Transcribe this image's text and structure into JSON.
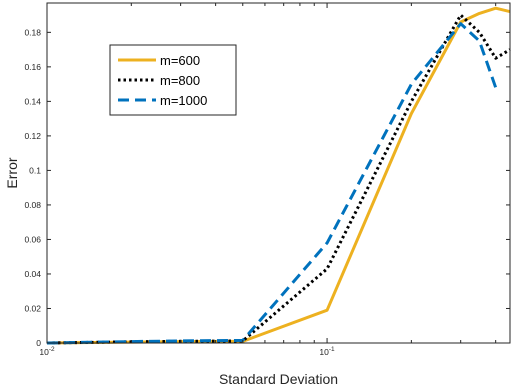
{
  "chart_data": {
    "type": "line",
    "xscale": "log",
    "xlabel": "Standard Deviation",
    "ylabel": "Error",
    "xlim": [
      0.01,
      0.45
    ],
    "ylim": [
      0,
      0.197
    ],
    "x_ticks": [
      {
        "value": 0.01,
        "base": "10",
        "exp": "-2"
      },
      {
        "value": 0.1,
        "base": "10",
        "exp": "-1"
      }
    ],
    "y_ticks": [
      0,
      0.02,
      0.04,
      0.06,
      0.08,
      0.1,
      0.12,
      0.14,
      0.16,
      0.18
    ],
    "y_tick_labels": [
      "0",
      "0.02",
      "0.04",
      "0.06",
      "0.08",
      "0.1",
      "0.12",
      "0.14",
      "0.16",
      "0.18"
    ],
    "grid": false,
    "legend_position": "upper-left",
    "series": [
      {
        "name": "m=600",
        "color": "#EDB120",
        "dash": "solid",
        "x": [
          0.01,
          0.02,
          0.03,
          0.05,
          0.1,
          0.2,
          0.3,
          0.35,
          0.4,
          0.45
        ],
        "y": [
          0,
          0.0005,
          0.0008,
          0.001,
          0.019,
          0.133,
          0.186,
          0.191,
          0.194,
          0.192
        ]
      },
      {
        "name": "m=800",
        "color": "#000000",
        "dash": "dotted",
        "x": [
          0.01,
          0.02,
          0.03,
          0.05,
          0.1,
          0.2,
          0.3,
          0.35,
          0.4,
          0.45
        ],
        "y": [
          0,
          0.0007,
          0.001,
          0.0012,
          0.043,
          0.14,
          0.19,
          0.18,
          0.165,
          0.17
        ]
      },
      {
        "name": "m=1000",
        "color": "#0072BD",
        "dash": "dashed",
        "x": [
          0.01,
          0.02,
          0.03,
          0.05,
          0.1,
          0.2,
          0.3,
          0.35,
          0.4
        ],
        "y": [
          0,
          0.0008,
          0.0012,
          0.0015,
          0.058,
          0.15,
          0.185,
          0.175,
          0.148
        ]
      }
    ]
  }
}
